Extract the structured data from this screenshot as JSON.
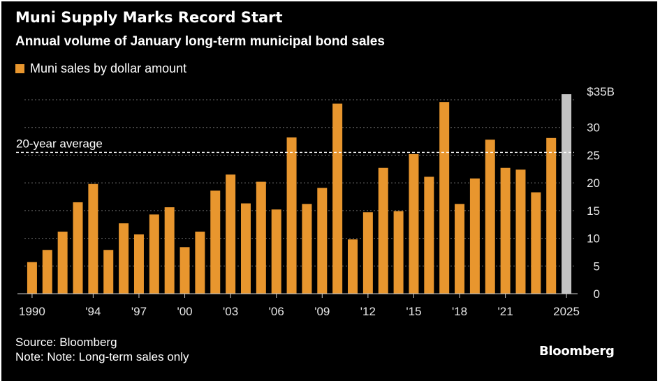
{
  "chart_data": {
    "type": "bar",
    "title": "Muni Supply Marks Record Start",
    "subtitle": "Annual volume of January long-term municipal bond sales",
    "legend": [
      {
        "label": "Muni sales by dollar amount",
        "color": "#e8962e"
      }
    ],
    "x": [
      1990,
      1991,
      1992,
      1993,
      1994,
      1995,
      1996,
      1997,
      1998,
      1999,
      2000,
      2001,
      2002,
      2003,
      2004,
      2005,
      2006,
      2007,
      2008,
      2009,
      2010,
      2011,
      2012,
      2013,
      2014,
      2015,
      2016,
      2017,
      2018,
      2019,
      2020,
      2021,
      2022,
      2023,
      2024,
      2025
    ],
    "values": [
      5.7,
      7.9,
      11.2,
      16.5,
      19.8,
      7.9,
      12.7,
      10.7,
      14.3,
      15.6,
      8.4,
      11.2,
      18.6,
      21.5,
      16.3,
      20.2,
      15.2,
      28.2,
      16.2,
      19.1,
      34.3,
      9.8,
      14.7,
      22.7,
      14.9,
      25.2,
      21.1,
      34.6,
      16.2,
      20.8,
      27.8,
      22.7,
      22.4,
      18.3,
      28.1,
      36.0
    ],
    "highlight_index": 35,
    "bar_color": "#e8962e",
    "highlight_color": "#c4c4c4",
    "ylim": [
      0,
      35
    ],
    "yticks": [
      0,
      5,
      10,
      15,
      20,
      25,
      30,
      35
    ],
    "ytick_labels": [
      "0",
      "5",
      "10",
      "15",
      "20",
      "25",
      "30",
      "$35B"
    ],
    "xtick_labels": [
      {
        "year": 1990,
        "label": "1990"
      },
      {
        "year": 1994,
        "label": "'94"
      },
      {
        "year": 1997,
        "label": "'97"
      },
      {
        "year": 2000,
        "label": "'00"
      },
      {
        "year": 2003,
        "label": "'03"
      },
      {
        "year": 2006,
        "label": "'06"
      },
      {
        "year": 2009,
        "label": "'09"
      },
      {
        "year": 2012,
        "label": "'12"
      },
      {
        "year": 2015,
        "label": "'15"
      },
      {
        "year": 2018,
        "label": "'18"
      },
      {
        "year": 2021,
        "label": "'21"
      },
      {
        "year": 2025,
        "label": "2025"
      }
    ],
    "reference_line": {
      "label": "20-year average",
      "value": 25.5
    },
    "grid": true,
    "legend_position": "top-left",
    "axis_side": "right"
  },
  "footer": {
    "source": "Source: Bloomberg",
    "note": "Note: Note: Long-term sales only"
  },
  "brand": "Bloomberg",
  "colors": {
    "background": "#000000",
    "text": "#ffffff",
    "axis_text": "#e6e6e6",
    "grid": "#6a6a6a"
  }
}
